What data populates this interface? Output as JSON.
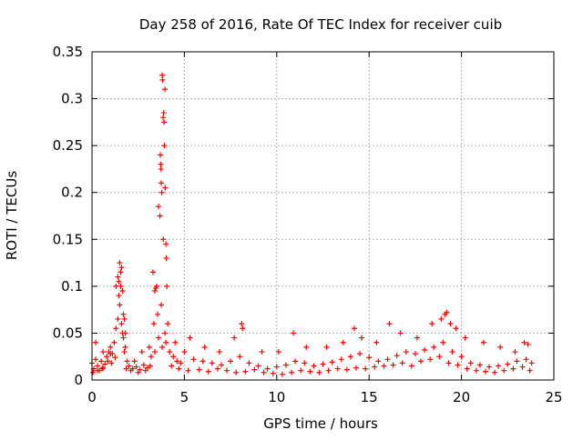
{
  "chart_data": {
    "type": "scatter",
    "title": "Day 258 of 2016, Rate Of TEC Index for receiver cuib",
    "xlabel": "GPS time / hours",
    "ylabel": "ROTI / TECUs",
    "xlim": [
      0,
      25
    ],
    "ylim": [
      0,
      0.35
    ],
    "xticks": [
      0,
      5,
      10,
      15,
      20,
      25
    ],
    "yticks": [
      0,
      0.05,
      0.1,
      0.15,
      0.2,
      0.25,
      0.3,
      0.35
    ],
    "xtick_labels": [
      "0",
      "5",
      "10",
      "15",
      "20",
      "25"
    ],
    "ytick_labels": [
      "0",
      "0.05",
      "0.1",
      "0.15",
      "0.2",
      "0.25",
      "0.3",
      "0.35"
    ],
    "grid": true,
    "marker": "+",
    "marker_color": "#ff0000",
    "series": [
      {
        "name": "ROTI",
        "x": [
          0.0,
          0.1,
          0.2,
          0.3,
          0.4,
          0.5,
          0.6,
          0.7,
          0.8,
          0.9,
          1.0,
          1.1,
          1.2,
          1.3,
          1.4,
          1.5,
          1.6,
          1.7,
          1.8,
          1.9,
          2.0,
          2.2,
          2.4,
          2.6,
          2.8,
          3.0,
          3.2,
          3.4,
          3.6,
          3.8,
          4.0,
          4.2,
          4.4,
          4.6,
          4.8,
          5.0,
          5.5,
          6.0,
          6.5,
          7.0,
          7.5,
          8.0,
          8.5,
          9.0,
          9.5,
          10.0,
          10.5,
          11.0,
          11.5,
          12.0,
          12.5,
          13.0,
          13.5,
          14.0,
          14.5,
          15.0,
          15.5,
          16.0,
          16.5,
          17.0,
          17.5,
          18.0,
          18.5,
          19.0,
          19.5,
          20.0,
          20.5,
          21.0,
          21.5,
          22.0,
          22.5,
          23.0,
          23.5,
          23.8,
          0.05,
          0.3,
          0.55,
          0.85,
          1.05,
          1.25,
          1.45,
          1.55,
          1.65,
          1.75,
          1.85,
          2.1,
          2.5,
          2.9,
          3.15,
          3.35,
          3.55,
          3.75,
          3.95,
          4.3,
          4.7,
          5.2,
          5.8,
          6.3,
          6.8,
          7.3,
          7.8,
          8.3,
          8.8,
          9.3,
          9.8,
          10.3,
          10.8,
          11.3,
          11.8,
          12.3,
          12.8,
          13.3,
          13.8,
          14.3,
          14.8,
          15.3,
          15.8,
          16.3,
          16.8,
          17.3,
          17.8,
          18.3,
          18.8,
          19.3,
          19.8,
          20.3,
          20.8,
          21.3,
          21.8,
          22.3,
          22.8,
          23.3,
          23.7,
          1.3,
          1.4,
          1.45,
          1.5,
          1.55,
          1.6,
          1.65,
          1.7,
          1.75,
          1.8,
          3.3,
          3.5,
          3.6,
          3.7,
          3.72,
          3.75,
          3.78,
          3.8,
          3.82,
          3.85,
          3.88,
          3.9,
          3.92,
          3.95,
          3.97,
          4.0,
          4.02,
          4.05,
          3.4,
          3.45,
          3.68,
          3.73,
          3.86,
          3.96,
          4.1,
          0.2,
          0.6,
          1.0,
          2.3,
          2.7,
          3.1,
          4.5,
          5.3,
          6.1,
          6.9,
          7.7,
          8.1,
          8.15,
          9.2,
          10.1,
          10.9,
          11.6,
          12.7,
          13.6,
          14.2,
          14.6,
          15.4,
          16.1,
          16.7,
          17.6,
          18.4,
          18.9,
          19.1,
          19.2,
          19.4,
          19.7,
          20.2,
          21.2,
          22.1,
          22.9,
          23.4,
          23.6
        ],
        "y": [
          0.018,
          0.012,
          0.022,
          0.015,
          0.01,
          0.02,
          0.013,
          0.017,
          0.025,
          0.03,
          0.035,
          0.028,
          0.04,
          0.055,
          0.065,
          0.08,
          0.06,
          0.045,
          0.035,
          0.02,
          0.015,
          0.012,
          0.014,
          0.011,
          0.016,
          0.013,
          0.025,
          0.03,
          0.045,
          0.035,
          0.04,
          0.03,
          0.025,
          0.02,
          0.018,
          0.03,
          0.022,
          0.02,
          0.018,
          0.016,
          0.02,
          0.025,
          0.018,
          0.015,
          0.012,
          0.014,
          0.016,
          0.02,
          0.018,
          0.015,
          0.017,
          0.019,
          0.022,
          0.025,
          0.028,
          0.024,
          0.02,
          0.022,
          0.026,
          0.03,
          0.028,
          0.032,
          0.035,
          0.04,
          0.03,
          0.025,
          0.018,
          0.016,
          0.014,
          0.015,
          0.017,
          0.02,
          0.022,
          0.018,
          0.008,
          0.01,
          0.012,
          0.02,
          0.018,
          0.024,
          0.09,
          0.1,
          0.05,
          0.03,
          0.012,
          0.01,
          0.008,
          0.01,
          0.015,
          0.06,
          0.07,
          0.08,
          0.05,
          0.015,
          0.012,
          0.01,
          0.011,
          0.009,
          0.012,
          0.01,
          0.008,
          0.009,
          0.011,
          0.008,
          0.007,
          0.006,
          0.008,
          0.01,
          0.009,
          0.008,
          0.01,
          0.012,
          0.011,
          0.013,
          0.012,
          0.014,
          0.015,
          0.016,
          0.018,
          0.015,
          0.02,
          0.022,
          0.025,
          0.018,
          0.016,
          0.012,
          0.01,
          0.009,
          0.008,
          0.01,
          0.012,
          0.014,
          0.01,
          0.1,
          0.11,
          0.105,
          0.125,
          0.115,
          0.12,
          0.095,
          0.07,
          0.065,
          0.05,
          0.115,
          0.1,
          0.185,
          0.24,
          0.23,
          0.21,
          0.2,
          0.325,
          0.32,
          0.28,
          0.285,
          0.275,
          0.25,
          0.31,
          0.205,
          0.145,
          0.13,
          0.1,
          0.095,
          0.098,
          0.175,
          0.225,
          0.15,
          0.205,
          0.06,
          0.04,
          0.03,
          0.028,
          0.02,
          0.03,
          0.035,
          0.04,
          0.045,
          0.035,
          0.03,
          0.045,
          0.06,
          0.055,
          0.03,
          0.03,
          0.05,
          0.035,
          0.035,
          0.04,
          0.055,
          0.045,
          0.04,
          0.06,
          0.05,
          0.045,
          0.06,
          0.065,
          0.07,
          0.072,
          0.06,
          0.055,
          0.045,
          0.04,
          0.035,
          0.03,
          0.04,
          0.038
        ]
      }
    ]
  }
}
